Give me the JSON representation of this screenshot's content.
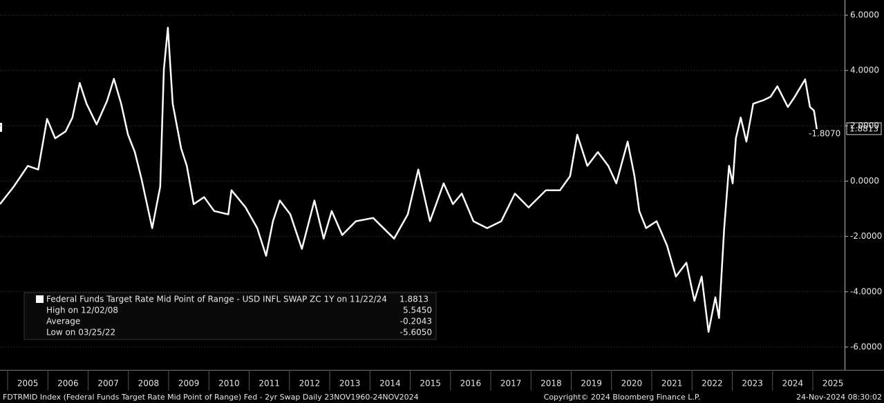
{
  "chart_data": {
    "type": "line",
    "series": [
      {
        "name": "Federal Funds Target Rate Mid Point of Range - USD INFL SWAP ZC 1Y on 11/22/24",
        "color": "#ffffff",
        "x": [
          2004.81,
          2005.15,
          2005.5,
          2005.76,
          2005.98,
          2006.18,
          2006.44,
          2006.61,
          2006.79,
          2006.96,
          2007.21,
          2007.47,
          2007.64,
          2007.82,
          2007.99,
          2008.16,
          2008.33,
          2008.59,
          2008.79,
          2008.88,
          2008.98,
          2009.1,
          2009.31,
          2009.45,
          2009.62,
          2009.88,
          2010.13,
          2010.48,
          2010.56,
          2010.91,
          2011.2,
          2011.42,
          2011.59,
          2011.76,
          2012.02,
          2012.31,
          2012.62,
          2012.85,
          2013.05,
          2013.31,
          2013.65,
          2014.08,
          2014.6,
          2014.94,
          2015.2,
          2015.49,
          2015.83,
          2016.06,
          2016.28,
          2016.57,
          2016.91,
          2017.26,
          2017.6,
          2017.94,
          2018.37,
          2018.72,
          2018.97,
          2019.15,
          2019.4,
          2019.66,
          2019.92,
          2020.12,
          2020.4,
          2020.57,
          2020.69,
          2020.86,
          2021.12,
          2021.38,
          2021.6,
          2021.86,
          2022.06,
          2022.24,
          2022.41,
          2022.58,
          2022.67,
          2022.8,
          2022.92,
          2023.01,
          2023.09,
          2023.21,
          2023.35,
          2023.52,
          2023.78,
          2023.95,
          2024.12,
          2024.38,
          2024.55,
          2024.81,
          2024.93,
          2025.03,
          2025.1
        ],
        "values": [
          -0.83,
          -0.2,
          0.55,
          0.42,
          2.25,
          1.55,
          1.8,
          2.3,
          3.55,
          2.8,
          2.05,
          2.9,
          3.7,
          2.8,
          1.68,
          1.05,
          0.05,
          -1.7,
          -0.2,
          4.05,
          5.55,
          2.8,
          1.18,
          0.55,
          -0.83,
          -0.58,
          -1.08,
          -1.2,
          -0.33,
          -0.95,
          -1.7,
          -2.7,
          -1.45,
          -0.7,
          -1.2,
          -2.45,
          -0.7,
          -2.08,
          -1.08,
          -1.95,
          -1.45,
          -1.33,
          -2.08,
          -1.2,
          0.42,
          -1.45,
          -0.08,
          -0.83,
          -0.45,
          -1.45,
          -1.7,
          -1.45,
          -0.45,
          -0.95,
          -0.33,
          -0.33,
          0.18,
          1.68,
          0.55,
          1.05,
          0.55,
          -0.08,
          1.43,
          0.18,
          -1.08,
          -1.7,
          -1.45,
          -2.33,
          -3.45,
          -2.95,
          -4.33,
          -3.45,
          -5.45,
          -4.2,
          -4.95,
          -1.7,
          0.55,
          -0.08,
          1.55,
          2.3,
          1.43,
          2.8,
          2.93,
          3.05,
          3.43,
          2.68,
          3.05,
          3.68,
          2.68,
          2.55,
          1.88
        ]
      }
    ],
    "xlim": [
      2004.81,
      2025.79
    ],
    "xticks": [
      {
        "value": 2005.5,
        "label": "2005"
      },
      {
        "value": 2006.5,
        "label": "2006"
      },
      {
        "value": 2007.5,
        "label": "2007"
      },
      {
        "value": 2008.5,
        "label": "2008"
      },
      {
        "value": 2009.5,
        "label": "2009"
      },
      {
        "value": 2010.5,
        "label": "2010"
      },
      {
        "value": 2011.5,
        "label": "2011"
      },
      {
        "value": 2012.5,
        "label": "2012"
      },
      {
        "value": 2013.5,
        "label": "2013"
      },
      {
        "value": 2014.5,
        "label": "2014"
      },
      {
        "value": 2015.5,
        "label": "2015"
      },
      {
        "value": 2016.5,
        "label": "2016"
      },
      {
        "value": 2017.5,
        "label": "2017"
      },
      {
        "value": 2018.5,
        "label": "2018"
      },
      {
        "value": 2019.5,
        "label": "2019"
      },
      {
        "value": 2020.5,
        "label": "2020"
      },
      {
        "value": 2021.5,
        "label": "2021"
      },
      {
        "value": 2022.5,
        "label": "2022"
      },
      {
        "value": 2023.5,
        "label": "2023"
      },
      {
        "value": 2024.5,
        "label": "2024"
      },
      {
        "value": 2025.5,
        "label": "2025"
      }
    ],
    "ylim": [
      -6.825,
      6.55
    ],
    "yticks": [
      {
        "value": 6,
        "label": "6.0000"
      },
      {
        "value": 4,
        "label": "4.0000"
      },
      {
        "value": 2,
        "label": "2.0000"
      },
      {
        "value": 0,
        "label": "0.0000"
      },
      {
        "value": -2,
        "label": "-2.0000"
      },
      {
        "value": -4,
        "label": "-4.0000"
      },
      {
        "value": -6,
        "label": "-6.0000"
      }
    ],
    "last_value_label": "1.8813",
    "annotation": "-1.8070",
    "legend": {
      "rows": [
        {
          "label": "High on 12/02/08",
          "value": "5.5450"
        },
        {
          "label": "Average",
          "value": "-0.2043"
        },
        {
          "label": "Low on 03/25/22",
          "value": "-5.6050"
        }
      ],
      "last": "1.8813"
    },
    "footer": {
      "left": "FDTRMID Index (Federal Funds Target Rate Mid Point of Range) Fed - 2yr Swap  Daily 23NOV1960-24NOV2024",
      "center": "Copyright© 2024 Bloomberg Finance L.P.",
      "right": "24-Nov-2024 08:30:02"
    }
  }
}
